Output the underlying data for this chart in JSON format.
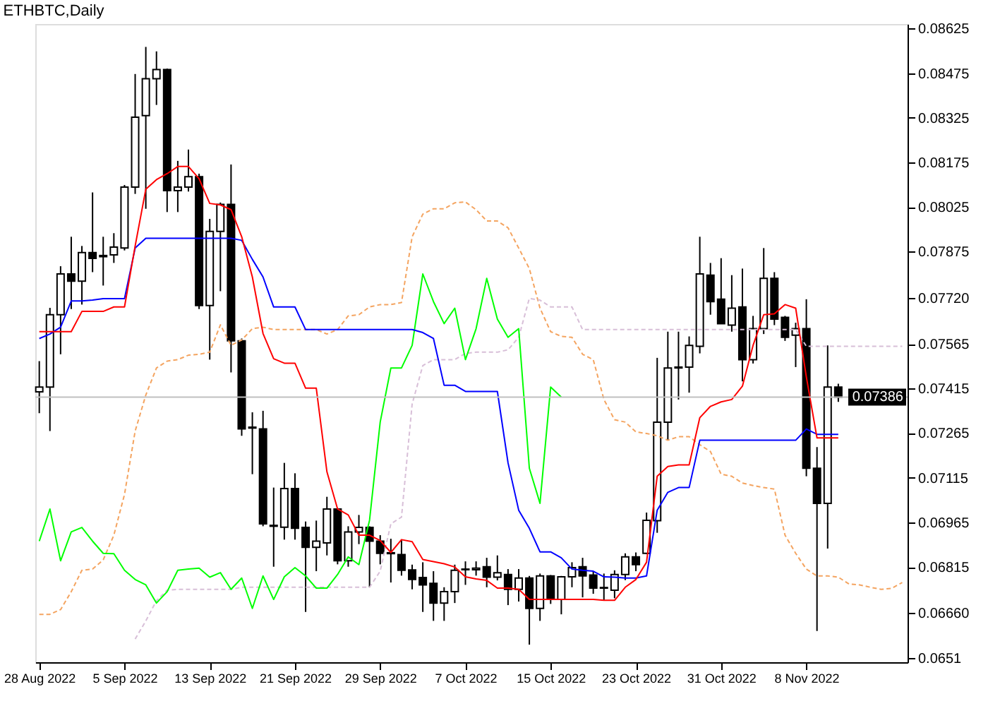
{
  "chart_data": {
    "type": "candlestick",
    "title": "ETHBTC,Daily",
    "x": [
      "2022-08-28",
      "2022-08-29",
      "2022-08-30",
      "2022-08-31",
      "2022-09-01",
      "2022-09-02",
      "2022-09-03",
      "2022-09-04",
      "2022-09-05",
      "2022-09-06",
      "2022-09-07",
      "2022-09-08",
      "2022-09-09",
      "2022-09-10",
      "2022-09-11",
      "2022-09-12",
      "2022-09-13",
      "2022-09-14",
      "2022-09-15",
      "2022-09-16",
      "2022-09-17",
      "2022-09-18",
      "2022-09-19",
      "2022-09-20",
      "2022-09-21",
      "2022-09-22",
      "2022-09-23",
      "2022-09-24",
      "2022-09-25",
      "2022-09-26",
      "2022-09-27",
      "2022-09-28",
      "2022-09-29",
      "2022-09-30",
      "2022-10-01",
      "2022-10-02",
      "2022-10-03",
      "2022-10-04",
      "2022-10-05",
      "2022-10-06",
      "2022-10-07",
      "2022-10-08",
      "2022-10-09",
      "2022-10-10",
      "2022-10-11",
      "2022-10-12",
      "2022-10-13",
      "2022-10-14",
      "2022-10-15",
      "2022-10-16",
      "2022-10-17",
      "2022-10-18",
      "2022-10-19",
      "2022-10-20",
      "2022-10-21",
      "2022-10-22",
      "2022-10-23",
      "2022-10-24",
      "2022-10-25",
      "2022-10-26",
      "2022-10-27",
      "2022-10-28",
      "2022-10-29",
      "2022-10-30",
      "2022-10-31",
      "2022-11-01",
      "2022-11-02",
      "2022-11-03",
      "2022-11-04",
      "2022-11-05",
      "2022-11-06",
      "2022-11-07",
      "2022-11-08",
      "2022-11-09",
      "2022-11-10",
      "2022-11-11"
    ],
    "ohlc": [
      [
        0.07404,
        0.07507,
        0.07332,
        0.0742
      ],
      [
        0.0742,
        0.07686,
        0.07272,
        0.07663
      ],
      [
        0.07663,
        0.07826,
        0.0753,
        0.078
      ],
      [
        0.078,
        0.07925,
        0.07682,
        0.07776
      ],
      [
        0.07776,
        0.07894,
        0.07697,
        0.07872
      ],
      [
        0.07872,
        0.08074,
        0.07806,
        0.07852
      ],
      [
        0.07858,
        0.07925,
        0.07761,
        0.07862
      ],
      [
        0.07864,
        0.07937,
        0.07837,
        0.0789
      ],
      [
        0.07887,
        0.08099,
        0.07879,
        0.08092
      ],
      [
        0.08092,
        0.08472,
        0.08069,
        0.08327
      ],
      [
        0.08332,
        0.08563,
        0.08019,
        0.08456
      ],
      [
        0.08456,
        0.08548,
        0.08368,
        0.08487
      ],
      [
        0.08487,
        0.0849,
        0.08008,
        0.0808
      ],
      [
        0.0808,
        0.0818,
        0.08008,
        0.08092
      ],
      [
        0.08092,
        0.08218,
        0.08077,
        0.08127
      ],
      [
        0.08127,
        0.08137,
        0.07682,
        0.07694
      ],
      [
        0.07694,
        0.07985,
        0.07512,
        0.07943
      ],
      [
        0.07943,
        0.0804,
        0.07742,
        0.08034
      ],
      [
        0.08034,
        0.08168,
        0.07469,
        0.07575
      ],
      [
        0.07575,
        0.07583,
        0.07256,
        0.07279
      ],
      [
        0.07285,
        0.07335,
        0.07127,
        0.07282
      ],
      [
        0.07279,
        0.0734,
        0.06952,
        0.0696
      ],
      [
        0.06955,
        0.07082,
        0.06816,
        0.06952
      ],
      [
        0.06949,
        0.07165,
        0.06907,
        0.07079
      ],
      [
        0.07079,
        0.0713,
        0.06907,
        0.06945
      ],
      [
        0.06948,
        0.06968,
        0.06664,
        0.06881
      ],
      [
        0.06881,
        0.06971,
        0.06801,
        0.06902
      ],
      [
        0.06896,
        0.07051,
        0.06854,
        0.0701
      ],
      [
        0.0701,
        0.07013,
        0.06824,
        0.06836
      ],
      [
        0.06836,
        0.06952,
        0.06816,
        0.06933
      ],
      [
        0.06933,
        0.0699,
        0.06892,
        0.06948
      ],
      [
        0.06948,
        0.06952,
        0.06747,
        0.06902
      ],
      [
        0.06902,
        0.06922,
        0.06824,
        0.06861
      ],
      [
        0.06863,
        0.0691,
        0.06763,
        0.0686
      ],
      [
        0.06857,
        0.06907,
        0.06786,
        0.06804
      ],
      [
        0.06805,
        0.06823,
        0.0674,
        0.06773
      ],
      [
        0.0678,
        0.06831,
        0.06664,
        0.06755
      ],
      [
        0.0676,
        0.06801,
        0.06634,
        0.06694
      ],
      [
        0.06694,
        0.06747,
        0.06634,
        0.06732
      ],
      [
        0.06732,
        0.06823,
        0.06694,
        0.06804
      ],
      [
        0.06806,
        0.06834,
        0.06755,
        0.06808
      ],
      [
        0.06806,
        0.06834,
        0.06786,
        0.06811
      ],
      [
        0.06816,
        0.06846,
        0.06747,
        0.06781
      ],
      [
        0.06781,
        0.06854,
        0.0677,
        0.06796
      ],
      [
        0.0679,
        0.06808,
        0.06687,
        0.0674
      ],
      [
        0.0674,
        0.06808,
        0.06699,
        0.06778
      ],
      [
        0.06778,
        0.06785,
        0.06554,
        0.06676
      ],
      [
        0.06676,
        0.06793,
        0.06634,
        0.06785
      ],
      [
        0.06785,
        0.06788,
        0.06691,
        0.06706
      ],
      [
        0.06706,
        0.06785,
        0.06656,
        0.06782
      ],
      [
        0.06782,
        0.06831,
        0.06747,
        0.06813
      ],
      [
        0.06816,
        0.06846,
        0.06713,
        0.06785
      ],
      [
        0.06788,
        0.06801,
        0.06725,
        0.06744
      ],
      [
        0.06746,
        0.06793,
        0.06702,
        0.06744
      ],
      [
        0.06737,
        0.06804,
        0.0671,
        0.0679
      ],
      [
        0.0679,
        0.06861,
        0.06771,
        0.06849
      ],
      [
        0.06849,
        0.06864,
        0.06801,
        0.06823
      ],
      [
        0.06861,
        0.06998,
        0.06858,
        0.06972
      ],
      [
        0.06971,
        0.07518,
        0.0693,
        0.07302
      ],
      [
        0.07302,
        0.07606,
        0.07241,
        0.07484
      ],
      [
        0.07487,
        0.07606,
        0.07378,
        0.07484
      ],
      [
        0.07487,
        0.0759,
        0.07401,
        0.0756
      ],
      [
        0.07557,
        0.07925,
        0.07533,
        0.078
      ],
      [
        0.07796,
        0.07837,
        0.07663,
        0.07707
      ],
      [
        0.07715,
        0.07853,
        0.07633,
        0.07633
      ],
      [
        0.07628,
        0.07796,
        0.07606,
        0.07685
      ],
      [
        0.07689,
        0.07818,
        0.07439,
        0.07512
      ],
      [
        0.07512,
        0.07659,
        0.07499,
        0.07616
      ],
      [
        0.07616,
        0.07887,
        0.07598,
        0.07785
      ],
      [
        0.07785,
        0.07806,
        0.07628,
        0.07648
      ],
      [
        0.07654,
        0.07659,
        0.07575,
        0.07587
      ],
      [
        0.07594,
        0.07636,
        0.07487,
        0.07616
      ],
      [
        0.07616,
        0.07715,
        0.0712,
        0.07147
      ],
      [
        0.07147,
        0.07218,
        0.066,
        0.07029
      ],
      [
        0.07029,
        0.0756,
        0.06877,
        0.0742
      ],
      [
        0.0742,
        0.07431,
        0.0737,
        0.07386
      ]
    ],
    "colors": [
      "#ffffff",
      "#ffffff",
      "#ffffff",
      "#000000",
      "#ffffff",
      "#000000",
      "#ffffff",
      "#ffffff",
      "#ffffff",
      "#ffffff",
      "#ffffff",
      "#ffffff",
      "#000000",
      "#ffffff",
      "#ffffff",
      "#000000",
      "#ffffff",
      "#ffffff",
      "#000000",
      "#000000",
      "#000000",
      "#000000",
      "#000000",
      "#ffffff",
      "#000000",
      "#000000",
      "#ffffff",
      "#ffffff",
      "#000000",
      "#ffffff",
      "#ffffff",
      "#000000",
      "#000000",
      "#000000",
      "#000000",
      "#000000",
      "#000000",
      "#000000",
      "#ffffff",
      "#ffffff",
      "#ffffff",
      "#ffffff",
      "#000000",
      "#ffffff",
      "#000000",
      "#ffffff",
      "#000000",
      "#ffffff",
      "#000000",
      "#ffffff",
      "#ffffff",
      "#000000",
      "#000000",
      "#000000",
      "#ffffff",
      "#ffffff",
      "#000000",
      "#ffffff",
      "#ffffff",
      "#ffffff",
      "#000000",
      "#ffffff",
      "#ffffff",
      "#000000",
      "#000000",
      "#ffffff",
      "#000000",
      "#ffffff",
      "#ffffff",
      "#000000",
      "#000000",
      "#ffffff",
      "#000000",
      "#000000",
      "#ffffff",
      "#000000"
    ],
    "series": [
      {
        "type": "line",
        "color": "#f4a460",
        "line_style": "dashed",
        "x": [
          "2022-08-28",
          "2022-08-29",
          "2022-08-30",
          "2022-08-31",
          "2022-09-01",
          "2022-09-02",
          "2022-09-03",
          "2022-09-04",
          "2022-09-05",
          "2022-09-06",
          "2022-09-07",
          "2022-09-08",
          "2022-09-09",
          "2022-09-10",
          "2022-09-11",
          "2022-09-12",
          "2022-09-13",
          "2022-09-14",
          "2022-09-15",
          "2022-09-16",
          "2022-09-17",
          "2022-09-18",
          "2022-09-19",
          "2022-09-20",
          "2022-09-21",
          "2022-09-22",
          "2022-09-23",
          "2022-09-24",
          "2022-09-25",
          "2022-09-26",
          "2022-09-27",
          "2022-09-28",
          "2022-09-29",
          "2022-09-30",
          "2022-10-01",
          "2022-10-02",
          "2022-10-03",
          "2022-10-04",
          "2022-10-05",
          "2022-10-06",
          "2022-10-07",
          "2022-10-08",
          "2022-10-09",
          "2022-10-10",
          "2022-10-11",
          "2022-10-12",
          "2022-10-13",
          "2022-10-14",
          "2022-10-15",
          "2022-10-16",
          "2022-10-17",
          "2022-10-18",
          "2022-10-19",
          "2022-10-20",
          "2022-10-21",
          "2022-10-22",
          "2022-10-23",
          "2022-10-24",
          "2022-10-25",
          "2022-10-26",
          "2022-10-27",
          "2022-10-28",
          "2022-10-29",
          "2022-10-30",
          "2022-10-31",
          "2022-11-01",
          "2022-11-02",
          "2022-11-03",
          "2022-11-04",
          "2022-11-05",
          "2022-11-06",
          "2022-11-07",
          "2022-11-08",
          "2022-11-09",
          "2022-11-10",
          "2022-11-11",
          "2022-11-12",
          "2022-11-13",
          "2022-11-14",
          "2022-11-15",
          "2022-11-16",
          "2022-11-17"
        ],
        "values": [
          0.06656,
          0.06656,
          0.06672,
          0.06732,
          0.06804,
          0.06808,
          0.06839,
          0.06922,
          0.07059,
          0.07272,
          0.07393,
          0.07484,
          0.07507,
          0.07512,
          0.07527,
          0.0753,
          0.07537,
          0.07629,
          0.0756,
          0.07578,
          0.07616,
          0.07621,
          0.07613,
          0.07613,
          0.07613,
          0.07613,
          0.07613,
          0.07598,
          0.07613,
          0.07659,
          0.07663,
          0.07689,
          0.07697,
          0.07697,
          0.07704,
          0.07925,
          0.08001,
          0.08019,
          0.08019,
          0.08039,
          0.08042,
          0.08016,
          0.07978,
          0.07978,
          0.07955,
          0.07887,
          0.07818,
          0.07685,
          0.07606,
          0.0759,
          0.07587,
          0.0753,
          0.07512,
          0.07378,
          0.0731,
          0.07302,
          0.07269,
          0.07264,
          0.07256,
          0.07241,
          0.07253,
          0.07253,
          0.07226,
          0.07203,
          0.07127,
          0.0712,
          0.07097,
          0.07089,
          0.07082,
          0.07077,
          0.06922,
          0.06861,
          0.06808,
          0.06785,
          0.06785,
          0.06781,
          0.06758,
          0.06755,
          0.06747,
          0.0674,
          0.06743,
          0.06763
        ]
      },
      {
        "type": "line",
        "color": "#d8bfd8",
        "line_style": "dashed",
        "x": [
          "2022-09-06",
          "2022-09-07",
          "2022-09-08",
          "2022-09-09",
          "2022-09-10",
          "2022-09-11",
          "2022-09-12",
          "2022-09-13",
          "2022-09-14",
          "2022-09-15",
          "2022-09-16",
          "2022-09-17",
          "2022-09-18",
          "2022-09-19",
          "2022-09-20",
          "2022-09-21",
          "2022-09-22",
          "2022-09-23",
          "2022-09-24",
          "2022-09-25",
          "2022-09-26",
          "2022-09-27",
          "2022-09-28",
          "2022-09-29",
          "2022-09-30",
          "2022-10-01",
          "2022-10-02",
          "2022-10-03",
          "2022-10-04",
          "2022-10-05",
          "2022-10-06",
          "2022-10-07",
          "2022-10-08",
          "2022-10-09",
          "2022-10-10",
          "2022-10-11",
          "2022-10-12",
          "2022-10-13",
          "2022-10-14",
          "2022-10-15",
          "2022-10-16",
          "2022-10-17",
          "2022-10-18",
          "2022-10-19",
          "2022-10-20",
          "2022-10-21",
          "2022-10-22",
          "2022-10-23",
          "2022-10-24",
          "2022-10-25",
          "2022-10-26",
          "2022-10-27",
          "2022-10-28",
          "2022-10-29",
          "2022-10-30",
          "2022-10-31",
          "2022-11-01",
          "2022-11-02",
          "2022-11-03",
          "2022-11-04",
          "2022-11-05",
          "2022-11-06",
          "2022-11-07",
          "2022-11-08",
          "2022-11-09",
          "2022-11-10",
          "2022-11-11",
          "2022-11-12",
          "2022-11-13",
          "2022-11-14",
          "2022-11-15",
          "2022-11-16",
          "2022-11-17"
        ],
        "values": [
          0.06573,
          0.06634,
          0.06702,
          0.06737,
          0.0674,
          0.0674,
          0.0674,
          0.0674,
          0.0674,
          0.0674,
          0.06747,
          0.06747,
          0.06747,
          0.06747,
          0.06747,
          0.06747,
          0.06747,
          0.06747,
          0.06747,
          0.06747,
          0.06747,
          0.06747,
          0.06747,
          0.06801,
          0.0696,
          0.06983,
          0.07363,
          0.07492,
          0.07512,
          0.07512,
          0.07512,
          0.07533,
          0.07537,
          0.07537,
          0.07537,
          0.07545,
          0.07587,
          0.07718,
          0.07712,
          0.07689,
          0.07689,
          0.07689,
          0.07613,
          0.07613,
          0.07613,
          0.07613,
          0.07613,
          0.07613,
          0.07613,
          0.07613,
          0.07613,
          0.07613,
          0.07613,
          0.07613,
          0.07613,
          0.07613,
          0.07613,
          0.07613,
          0.07613,
          0.07613,
          0.07613,
          0.07613,
          0.07613,
          0.07557,
          0.07557,
          0.07557,
          0.07557,
          0.07557,
          0.07557,
          0.07557,
          0.07557,
          0.07557,
          0.07557
        ]
      },
      {
        "type": "line",
        "color": "#00ff00",
        "x": [
          "2022-08-28",
          "2022-08-29",
          "2022-08-30",
          "2022-08-31",
          "2022-09-01",
          "2022-09-02",
          "2022-09-03",
          "2022-09-04",
          "2022-09-05",
          "2022-09-06",
          "2022-09-07",
          "2022-09-08",
          "2022-09-09",
          "2022-09-10",
          "2022-09-11",
          "2022-09-12",
          "2022-09-13",
          "2022-09-14",
          "2022-09-15",
          "2022-09-16",
          "2022-09-17",
          "2022-09-18",
          "2022-09-19",
          "2022-09-20",
          "2022-09-21",
          "2022-09-22",
          "2022-09-23",
          "2022-09-24",
          "2022-09-25",
          "2022-09-26",
          "2022-09-27",
          "2022-09-28",
          "2022-09-29",
          "2022-09-30",
          "2022-10-01",
          "2022-10-02",
          "2022-10-03",
          "2022-10-04",
          "2022-10-05",
          "2022-10-06",
          "2022-10-07",
          "2022-10-08",
          "2022-10-09",
          "2022-10-10",
          "2022-10-11",
          "2022-10-12",
          "2022-10-13",
          "2022-10-14",
          "2022-10-15",
          "2022-10-16"
        ],
        "values": [
          0.06902,
          0.0701,
          0.06836,
          0.06933,
          0.06948,
          0.06902,
          0.06861,
          0.0686,
          0.06804,
          0.06773,
          0.06755,
          0.06694,
          0.06732,
          0.06804,
          0.06808,
          0.06811,
          0.06781,
          0.06796,
          0.0674,
          0.06778,
          0.06676,
          0.06785,
          0.06706,
          0.06782,
          0.06813,
          0.06785,
          0.06744,
          0.06744,
          0.0679,
          0.06849,
          0.06823,
          0.06972,
          0.07302,
          0.07484,
          0.07484,
          0.0756,
          0.078,
          0.07707,
          0.07633,
          0.07685,
          0.07512,
          0.07616,
          0.07785,
          0.07648,
          0.07587,
          0.07616,
          0.07147,
          0.07029,
          0.0742,
          0.07386
        ]
      },
      {
        "type": "line",
        "color": "#0000ff",
        "values": [
          0.07583,
          0.07598,
          0.07621,
          0.07709,
          0.07709,
          0.07712,
          0.07717,
          0.07717,
          0.07717,
          0.07887,
          0.0792,
          0.0792,
          0.0792,
          0.0792,
          0.0792,
          0.0792,
          0.0792,
          0.0792,
          0.0792,
          0.07913,
          0.07849,
          0.0779,
          0.07689,
          0.07689,
          0.07689,
          0.07613,
          0.07613,
          0.07613,
          0.07613,
          0.07613,
          0.07613,
          0.07613,
          0.07613,
          0.07613,
          0.07613,
          0.07613,
          0.07603,
          0.07583,
          0.07426,
          0.07426,
          0.07405,
          0.07405,
          0.07405,
          0.07405,
          0.07165,
          0.07006,
          0.06945,
          0.06866,
          0.06866,
          0.06846,
          0.06808,
          0.06804,
          0.06801,
          0.06782,
          0.06781,
          0.06778,
          0.06778,
          0.06785,
          0.07006,
          0.07066,
          0.07082,
          0.07082,
          0.07241,
          0.07241,
          0.07241,
          0.07241,
          0.07241,
          0.07241,
          0.07241,
          0.07241,
          0.07241,
          0.07241,
          0.07279,
          0.07261,
          0.07261,
          0.07261
        ]
      },
      {
        "type": "line",
        "color": "#ff0000",
        "values": [
          0.07606,
          0.07606,
          0.07606,
          0.07606,
          0.07674,
          0.07674,
          0.07674,
          0.07689,
          0.07689,
          0.07894,
          0.08085,
          0.08117,
          0.08137,
          0.08161,
          0.08161,
          0.0812,
          0.08037,
          0.08032,
          0.08016,
          0.07925,
          0.0779,
          0.076,
          0.07515,
          0.075,
          0.075,
          0.07416,
          0.07416,
          0.07135,
          0.0701,
          0.0699,
          0.06922,
          0.06922,
          0.06904,
          0.06864,
          0.06907,
          0.069,
          0.0684,
          0.06833,
          0.06826,
          0.06815,
          0.06782,
          0.06775,
          0.0677,
          0.06744,
          0.06744,
          0.0674,
          0.06706,
          0.06706,
          0.06706,
          0.06706,
          0.06706,
          0.06706,
          0.06706,
          0.06703,
          0.06703,
          0.06747,
          0.06773,
          0.06831,
          0.0712,
          0.07153,
          0.07158,
          0.07158,
          0.07317,
          0.07355,
          0.0737,
          0.07378,
          0.07423,
          0.0756,
          0.07663,
          0.07666,
          0.07697,
          0.07685,
          0.07454,
          0.07249,
          0.07249,
          0.07249
        ]
      }
    ],
    "xlim": [
      "2022-08-27T15:00",
      "2022-11-17T12:00"
    ],
    "ylim": [
      0.06495,
      0.0864
    ],
    "xticks": [
      {
        "value": "2022-08-28",
        "label": "28 Aug 2022"
      },
      {
        "value": "2022-09-05",
        "label": "5 Sep 2022"
      },
      {
        "value": "2022-09-13",
        "label": "13 Sep 2022"
      },
      {
        "value": "2022-09-21",
        "label": "21 Sep 2022"
      },
      {
        "value": "2022-09-29",
        "label": "29 Sep 2022"
      },
      {
        "value": "2022-10-07",
        "label": "7 Oct 2022"
      },
      {
        "value": "2022-10-15",
        "label": "15 Oct 2022"
      },
      {
        "value": "2022-10-23",
        "label": "23 Oct 2022"
      },
      {
        "value": "2022-10-31",
        "label": "31 Oct 2022"
      },
      {
        "value": "2022-11-08",
        "label": "8 Nov 2022"
      }
    ],
    "yticks": [
      0.08625,
      0.08475,
      0.08325,
      0.08175,
      0.08025,
      0.07875,
      {
        "value": 0.0772,
        "label": "0.07720"
      },
      0.07565,
      0.07415,
      0.07265,
      0.07115,
      0.06965,
      0.06815,
      {
        "value": 0.0666,
        "label": "0.06660"
      },
      0.0651
    ],
    "ref_lines": [
      {
        "axis": "y",
        "value": 0.07386,
        "label": "0.07386",
        "color": "#c0c0c0"
      }
    ],
    "grid": false
  }
}
